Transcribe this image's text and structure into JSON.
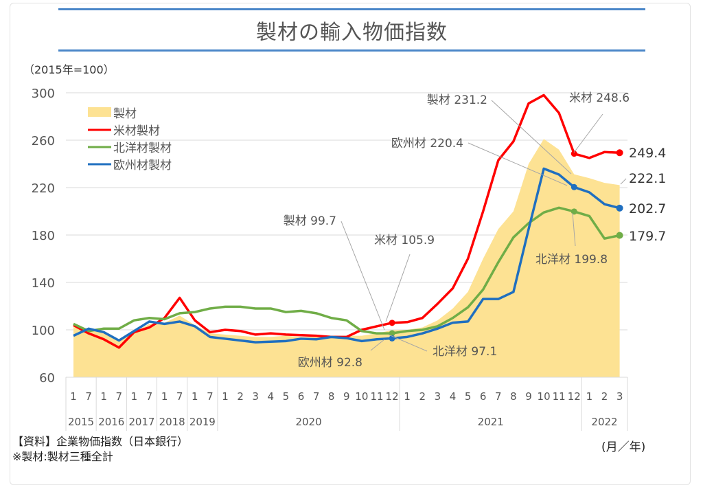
{
  "title": "製材の輸入物価指数",
  "unit_label": "（2015年=100）",
  "source": "【資料】企業物価指数（日本銀行）",
  "note": "※製材:製材三種全計",
  "x_unit": "(月／年)",
  "chart_data": {
    "type": "line",
    "title": "製材の輸入物価指数",
    "ylabel": "（2015年=100）",
    "xlabel": "(月／年)",
    "ylim": [
      60,
      300
    ],
    "yticks": [
      60,
      100,
      140,
      180,
      220,
      260,
      300
    ],
    "grid": true,
    "legend_position": "top-left",
    "month_labels": [
      "1",
      "7",
      "1",
      "7",
      "1",
      "7",
      "1",
      "7",
      "1",
      "7",
      "1",
      "2",
      "3",
      "4",
      "5",
      "6",
      "7",
      "8",
      "9",
      "10",
      "11",
      "12",
      "1",
      "2",
      "3",
      "4",
      "5",
      "6",
      "7",
      "8",
      "9",
      "10",
      "11",
      "12",
      "1",
      "2",
      "3"
    ],
    "year_groups": [
      {
        "label": "2015",
        "count": 2
      },
      {
        "label": "2016",
        "count": 2
      },
      {
        "label": "2017",
        "count": 2
      },
      {
        "label": "2018",
        "count": 2
      },
      {
        "label": "2019",
        "count": 2
      },
      {
        "label": "2020",
        "count": 12
      },
      {
        "label": "2021",
        "count": 12
      },
      {
        "label": "2022",
        "count": 3
      }
    ],
    "series": [
      {
        "name": "製材",
        "kind": "area",
        "color": "#fde293",
        "values": [
          103,
          100,
          98,
          92,
          98,
          105,
          106,
          112,
          104,
          97,
          96,
          95,
          94,
          94,
          95,
          94,
          94,
          95,
          95,
          95,
          97,
          99.7,
          100,
          102,
          108,
          118,
          132,
          160,
          185,
          200,
          240,
          261,
          252,
          231.2,
          228,
          224,
          222.1
        ]
      },
      {
        "name": "米材製材",
        "kind": "line",
        "color": "#ff0000",
        "values": [
          104,
          97,
          92,
          85,
          98,
          102,
          110,
          127,
          108,
          98,
          100,
          99,
          96,
          97,
          96,
          95.5,
          95,
          94,
          94,
          100,
          103,
          105.9,
          106.5,
          110,
          122,
          135,
          160,
          200,
          243,
          259,
          291,
          298,
          283,
          248.6,
          245,
          250,
          249.4
        ]
      },
      {
        "name": "北洋材製材",
        "kind": "line",
        "color": "#70ad47",
        "values": [
          105,
          99,
          101,
          101,
          108,
          110,
          109,
          114,
          115,
          118,
          119.5,
          119.5,
          118,
          118,
          115,
          116,
          114,
          110,
          108,
          99,
          97,
          97.1,
          99,
          100,
          103,
          110,
          119,
          134,
          157,
          178,
          190,
          199,
          203,
          199.8,
          196,
          177,
          179.7
        ]
      },
      {
        "name": "欧州材製材",
        "kind": "line",
        "color": "#1f6fc0",
        "values": [
          95,
          101,
          98,
          91,
          99,
          107,
          105,
          107,
          103,
          94,
          92.5,
          91,
          89.5,
          90,
          90.5,
          92.5,
          92,
          94,
          93,
          90.5,
          92,
          92.8,
          94,
          97,
          101,
          106,
          107,
          126,
          126,
          132,
          185,
          236,
          231,
          220.4,
          216,
          206,
          202.7
        ]
      }
    ],
    "annotations": [
      {
        "text": "製材 99.7",
        "series": 0,
        "index": 21
      },
      {
        "text": "米材 105.9",
        "series": 1,
        "index": 21
      },
      {
        "text": "北洋材 97.1",
        "series": 2,
        "index": 21
      },
      {
        "text": "欧州材  92.8",
        "series": 3,
        "index": 21
      },
      {
        "text": "製材 231.2",
        "series": 0,
        "index": 33
      },
      {
        "text": "米材 248.6",
        "series": 1,
        "index": 33
      },
      {
        "text": "欧州材 220.4",
        "series": 3,
        "index": 33
      },
      {
        "text": "北洋材 199.8",
        "series": 2,
        "index": 33
      },
      {
        "text": "249.4",
        "series": 1,
        "index": 36
      },
      {
        "text": "222.1",
        "series": 0,
        "index": 36
      },
      {
        "text": "202.7",
        "series": 3,
        "index": 36
      },
      {
        "text": "179.7",
        "series": 2,
        "index": 36
      }
    ]
  }
}
